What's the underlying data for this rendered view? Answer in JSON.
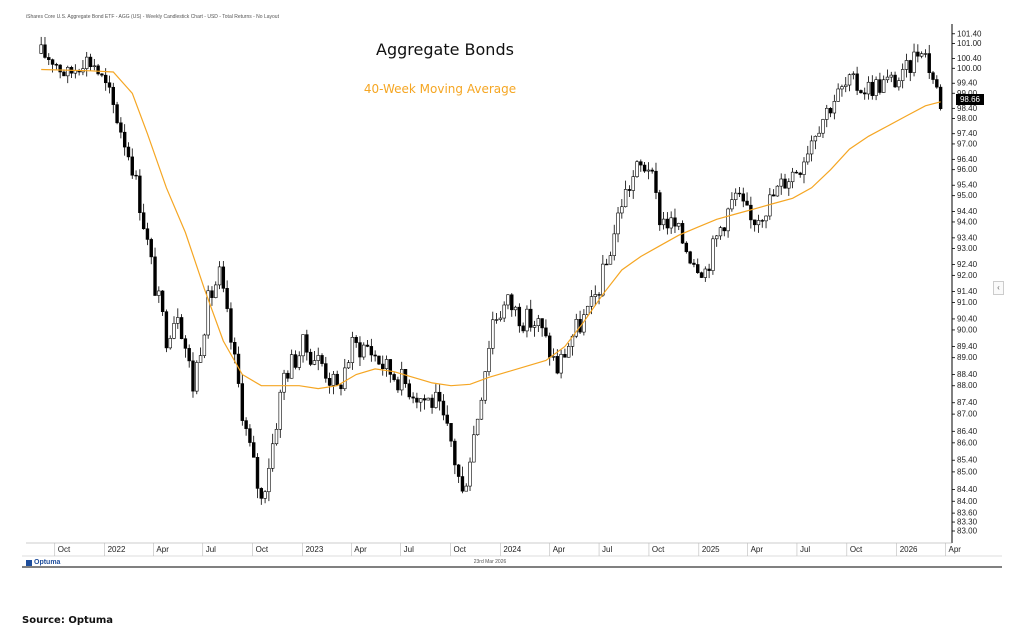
{
  "header": {
    "description": "iShares Core U.S. Aggregate Bond ETF - AGG (US) - Weekly Candlestick Chart - USD - Total Returns - No Layout"
  },
  "footer": {
    "logo_text": "Optuma",
    "date_label": "23rd Mar 2026",
    "source": "Source: Optuma"
  },
  "ui": {
    "collapse_glyph": "‹"
  },
  "colors": {
    "moving_average": "#F5A623",
    "candle": "#000000",
    "axis": "#000000"
  },
  "chart_data": {
    "type": "candlestick",
    "title": "Aggregate Bonds",
    "subtitle": "40-Week Moving Average",
    "x_ticks": [
      "Oct",
      "2022",
      "Apr",
      "Jul",
      "Oct",
      "2023",
      "Apr",
      "Jul",
      "Oct",
      "2024",
      "Apr",
      "Jul",
      "Oct",
      "2025",
      "Apr",
      "Jul",
      "Oct",
      "2026",
      "Apr"
    ],
    "y_ticks": [
      "101.40",
      "101.00",
      "100.40",
      "100.00",
      "99.40",
      "99.00",
      "98.40",
      "98.00",
      "97.40",
      "97.00",
      "96.40",
      "96.00",
      "95.40",
      "95.00",
      "94.40",
      "94.00",
      "93.40",
      "93.00",
      "92.40",
      "92.00",
      "91.40",
      "91.00",
      "90.40",
      "90.00",
      "89.40",
      "89.00",
      "88.40",
      "88.00",
      "87.40",
      "87.00",
      "86.40",
      "86.00",
      "85.40",
      "85.00",
      "84.40",
      "84.00",
      "83.60",
      "83.30",
      "83.00"
    ],
    "y_axis_scale": "log",
    "ylim": [
      82.6,
      101.8
    ],
    "last_value": "98.66",
    "price_path": [
      [
        "2021-09-06",
        100.6
      ],
      [
        "2021-09-27",
        100.4
      ],
      [
        "2021-10-25",
        99.7
      ],
      [
        "2021-11-22",
        100.4
      ],
      [
        "2021-12-13",
        100.2
      ],
      [
        "2022-01-10",
        98.9
      ],
      [
        "2022-01-31",
        97.6
      ],
      [
        "2022-02-21",
        96.2
      ],
      [
        "2022-03-14",
        94.0
      ],
      [
        "2022-04-04",
        91.6
      ],
      [
        "2022-04-25",
        89.8
      ],
      [
        "2022-05-16",
        90.8
      ],
      [
        "2022-06-13",
        88.0
      ],
      [
        "2022-07-11",
        91.0
      ],
      [
        "2022-08-01",
        92.0
      ],
      [
        "2022-08-22",
        89.6
      ],
      [
        "2022-09-19",
        86.4
      ],
      [
        "2022-10-17",
        84.0
      ],
      [
        "2022-11-07",
        86.0
      ],
      [
        "2022-11-28",
        88.4
      ],
      [
        "2023-01-02",
        89.4
      ],
      [
        "2023-02-06",
        88.8
      ],
      [
        "2023-03-06",
        87.8
      ],
      [
        "2023-04-03",
        89.4
      ],
      [
        "2023-05-01",
        89.4
      ],
      [
        "2023-06-05",
        88.6
      ],
      [
        "2023-07-03",
        88.2
      ],
      [
        "2023-08-07",
        87.6
      ],
      [
        "2023-09-04",
        87.4
      ],
      [
        "2023-10-02",
        86.0
      ],
      [
        "2023-10-23",
        84.2
      ],
      [
        "2023-11-20",
        87.0
      ],
      [
        "2023-12-18",
        90.4
      ],
      [
        "2024-01-15",
        91.0
      ],
      [
        "2024-02-12",
        90.4
      ],
      [
        "2024-03-11",
        90.2
      ],
      [
        "2024-04-15",
        88.6
      ],
      [
        "2024-05-13",
        89.8
      ],
      [
        "2024-06-17",
        90.8
      ],
      [
        "2024-07-15",
        92.4
      ],
      [
        "2024-08-12",
        94.8
      ],
      [
        "2024-09-09",
        96.0
      ],
      [
        "2024-09-30",
        96.2
      ],
      [
        "2024-10-21",
        94.2
      ],
      [
        "2024-11-18",
        93.8
      ],
      [
        "2024-12-16",
        92.8
      ],
      [
        "2025-01-13",
        92.2
      ],
      [
        "2025-02-10",
        93.8
      ],
      [
        "2025-03-10",
        95.0
      ],
      [
        "2025-04-07",
        94.0
      ],
      [
        "2025-05-05",
        94.6
      ],
      [
        "2025-06-09",
        95.6
      ],
      [
        "2025-07-07",
        96.2
      ],
      [
        "2025-08-04",
        97.6
      ],
      [
        "2025-09-08",
        98.8
      ],
      [
        "2025-10-06",
        99.4
      ],
      [
        "2025-11-03",
        99.2
      ],
      [
        "2025-12-08",
        99.4
      ],
      [
        "2026-01-12",
        99.6
      ],
      [
        "2026-02-16",
        101.0
      ],
      [
        "2026-03-09",
        99.6
      ],
      [
        "2026-03-23",
        98.66
      ]
    ],
    "moving_average": {
      "name": "40-Week Moving Average",
      "points": [
        [
          "2021-09-06",
          99.95
        ],
        [
          "2021-12-06",
          99.9
        ],
        [
          "2022-01-17",
          99.85
        ],
        [
          "2022-02-21",
          99.0
        ],
        [
          "2022-03-21",
          97.4
        ],
        [
          "2022-04-25",
          95.3
        ],
        [
          "2022-05-30",
          93.6
        ],
        [
          "2022-07-04",
          91.5
        ],
        [
          "2022-08-08",
          89.6
        ],
        [
          "2022-09-12",
          88.4
        ],
        [
          "2022-10-17",
          88.0
        ],
        [
          "2022-11-21",
          88.0
        ],
        [
          "2022-12-26",
          88.0
        ],
        [
          "2023-01-30",
          87.9
        ],
        [
          "2023-03-06",
          88.0
        ],
        [
          "2023-04-10",
          88.4
        ],
        [
          "2023-05-15",
          88.6
        ],
        [
          "2023-06-19",
          88.5
        ],
        [
          "2023-07-24",
          88.3
        ],
        [
          "2023-08-28",
          88.1
        ],
        [
          "2023-10-02",
          88.0
        ],
        [
          "2023-11-06",
          88.05
        ],
        [
          "2023-12-11",
          88.3
        ],
        [
          "2024-01-15",
          88.5
        ],
        [
          "2024-02-19",
          88.7
        ],
        [
          "2024-03-25",
          88.9
        ],
        [
          "2024-04-29",
          89.4
        ],
        [
          "2024-06-03",
          90.3
        ],
        [
          "2024-07-08",
          91.3
        ],
        [
          "2024-08-12",
          92.2
        ],
        [
          "2024-09-16",
          92.7
        ],
        [
          "2024-10-21",
          93.1
        ],
        [
          "2024-11-25",
          93.5
        ],
        [
          "2024-12-30",
          93.8
        ],
        [
          "2025-02-03",
          94.1
        ],
        [
          "2025-03-10",
          94.3
        ],
        [
          "2025-04-14",
          94.5
        ],
        [
          "2025-05-19",
          94.7
        ],
        [
          "2025-06-23",
          94.9
        ],
        [
          "2025-07-28",
          95.3
        ],
        [
          "2025-09-01",
          96.0
        ],
        [
          "2025-10-06",
          96.8
        ],
        [
          "2025-11-10",
          97.3
        ],
        [
          "2025-12-15",
          97.7
        ],
        [
          "2026-01-19",
          98.1
        ],
        [
          "2026-02-23",
          98.5
        ],
        [
          "2026-03-23",
          98.66
        ]
      ]
    },
    "legend": "none",
    "grid": false
  }
}
